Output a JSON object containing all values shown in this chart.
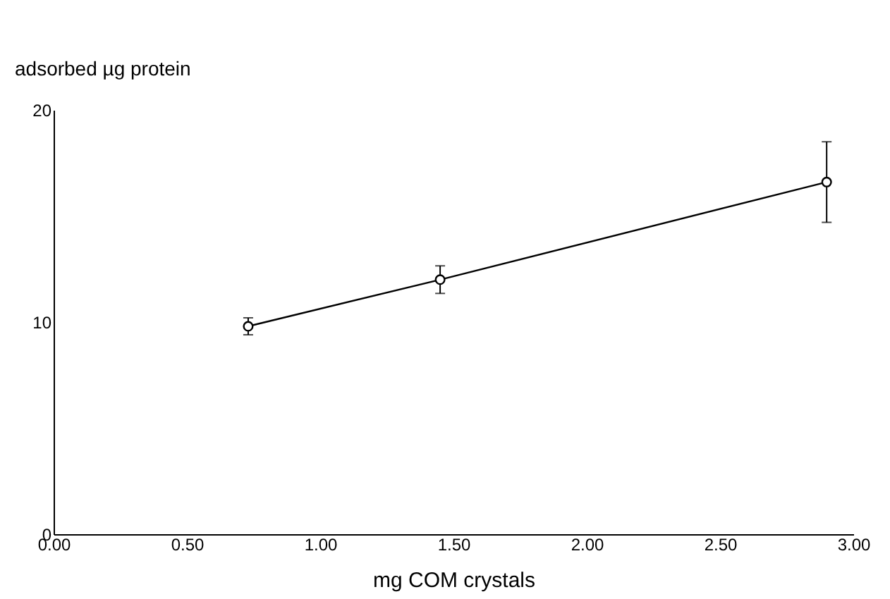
{
  "chart_data": {
    "type": "line",
    "xlabel": "mg COM crystals",
    "ylabel": "adsorbed µg protein",
    "x": [
      0.73,
      1.45,
      2.9
    ],
    "series": [
      {
        "color": "#000000",
        "values": [
          9.8,
          12.0,
          16.6
        ],
        "errors": [
          0.4,
          0.65,
          1.9
        ]
      }
    ],
    "xlim": [
      0,
      3
    ],
    "xticks": [
      {
        "value": 0,
        "label": "0.00"
      },
      {
        "value": 0.5,
        "label": "0.50"
      },
      {
        "value": 1,
        "label": "1.00"
      },
      {
        "value": 1.5,
        "label": "1.50"
      },
      {
        "value": 2,
        "label": "2.00"
      },
      {
        "value": 2.5,
        "label": "2.50"
      },
      {
        "value": 3,
        "label": "3.00"
      }
    ],
    "ylim": [
      0,
      20
    ],
    "yticks": [
      0,
      10,
      20
    ],
    "grid": false,
    "marker": "circle",
    "line_style": "solid"
  }
}
